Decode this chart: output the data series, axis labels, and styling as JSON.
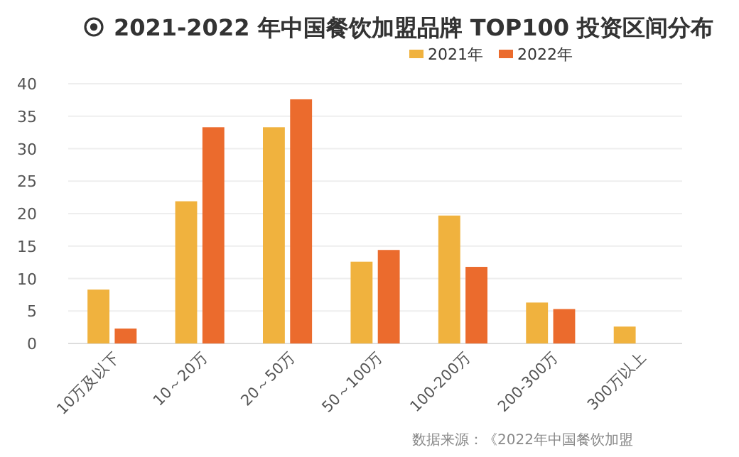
{
  "chart_data": {
    "type": "bar",
    "title": "2021-2022 年中国餐饮加盟品牌 TOP100 投资区间分布",
    "categories": [
      "10万及以下",
      "10～20万",
      "20～50万",
      "50～100万",
      "100-200万",
      "200-300万",
      "300万以上"
    ],
    "series": [
      {
        "name": "2021年",
        "color": "#f0b23e",
        "values": [
          8.3,
          21.9,
          33.3,
          12.6,
          19.7,
          6.3,
          2.6
        ]
      },
      {
        "name": "2022年",
        "color": "#eb6b2d",
        "values": [
          2.3,
          33.3,
          37.6,
          14.4,
          11.8,
          5.3,
          null
        ]
      }
    ],
    "ylim": [
      0,
      40
    ],
    "yticks": [
      0,
      5,
      10,
      15,
      20,
      25,
      30,
      35,
      40
    ],
    "grid": "y",
    "legend": "top right",
    "annotations": [
      "数据来源：《2022年中国餐饮加盟"
    ]
  }
}
